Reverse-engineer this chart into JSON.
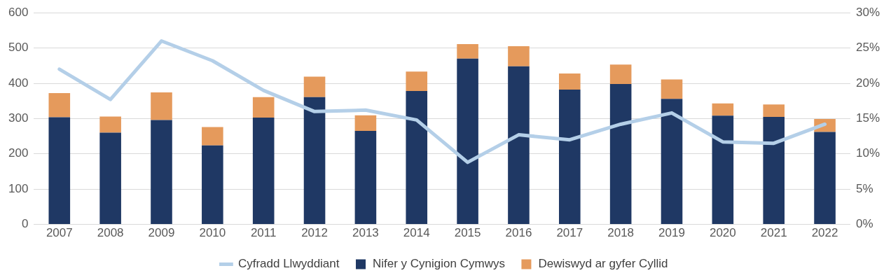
{
  "chart_data": {
    "type": "bar",
    "stacked": true,
    "categories": [
      "2007",
      "2008",
      "2009",
      "2010",
      "2011",
      "2012",
      "2013",
      "2014",
      "2015",
      "2016",
      "2017",
      "2018",
      "2019",
      "2020",
      "2021",
      "2022"
    ],
    "series": [
      {
        "name": "Nifer y Cynigion Cymwys",
        "color": "#1f3864",
        "values": [
          304,
          260,
          296,
          224,
          303,
          361,
          265,
          378,
          470,
          448,
          382,
          398,
          356,
          308,
          305,
          262
        ]
      },
      {
        "name": "Dewiswyd ar gyfer Cyllid",
        "color": "#e59a5c",
        "values": [
          68,
          46,
          78,
          52,
          58,
          58,
          44,
          55,
          41,
          57,
          46,
          55,
          55,
          35,
          35,
          37
        ]
      },
      {
        "name": "Cyfradd Llwyddiant",
        "type": "line",
        "axis": "y2",
        "color": "#b4cfe8",
        "values": [
          22,
          17.7,
          26,
          23.2,
          19,
          16,
          16.2,
          14.8,
          8.8,
          12.7,
          12,
          14.2,
          15.8,
          11.7,
          11.5,
          14.2
        ]
      }
    ],
    "ylim": [
      0,
      600
    ],
    "yticks": [
      0,
      100,
      200,
      300,
      400,
      500,
      600
    ],
    "y2lim": [
      0,
      30
    ],
    "y2ticks": [
      {
        "value": 0,
        "label": "0%"
      },
      {
        "value": 5,
        "label": "5%"
      },
      {
        "value": 10,
        "label": "10%"
      },
      {
        "value": 15,
        "label": "15%"
      },
      {
        "value": 20,
        "label": "20%"
      },
      {
        "value": 25,
        "label": "25%"
      },
      {
        "value": 30,
        "label": "30%"
      }
    ],
    "grid": "y",
    "legend": "bottom",
    "marker": "none"
  }
}
